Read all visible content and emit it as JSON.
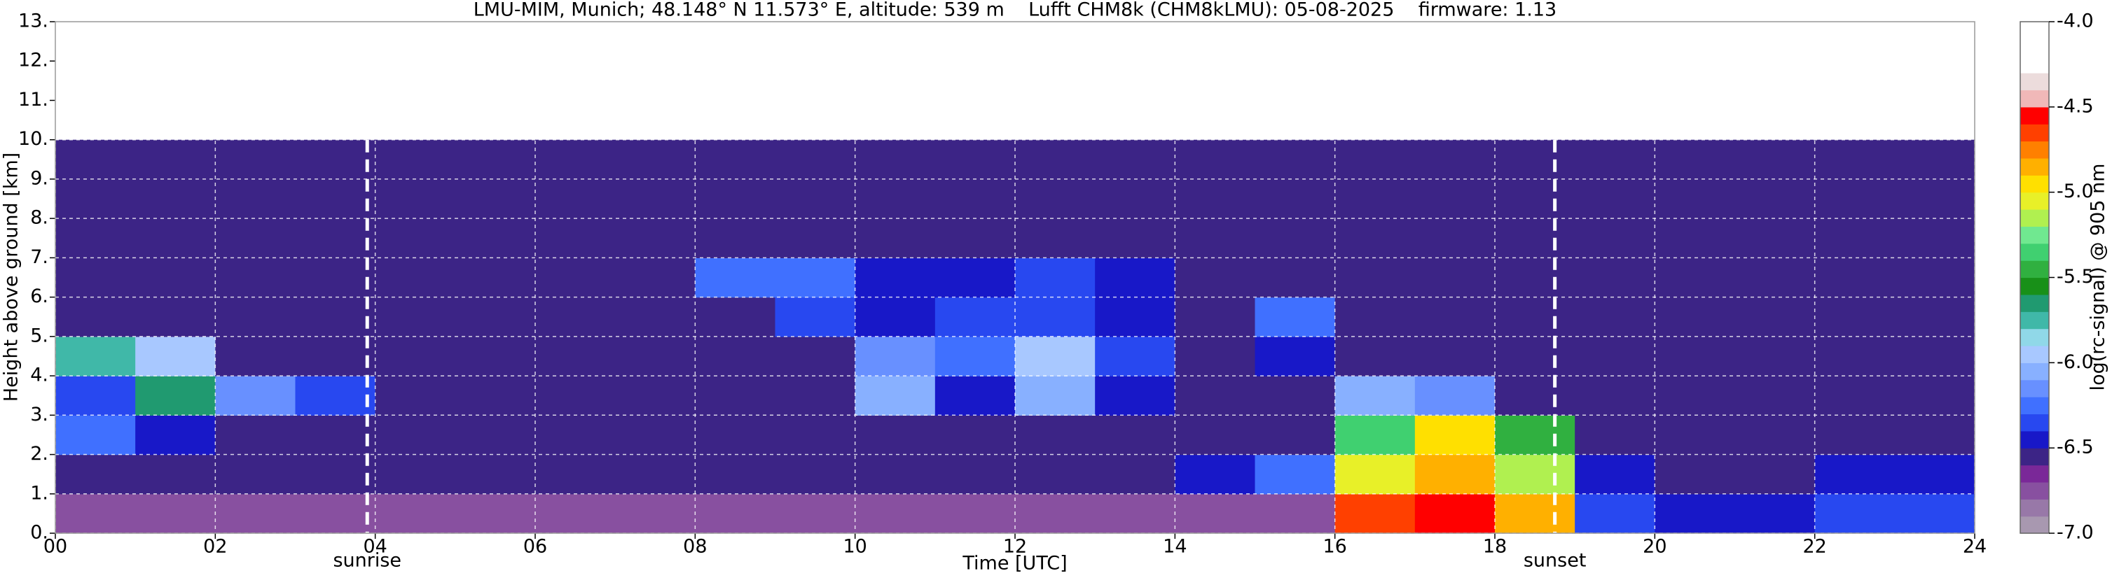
{
  "chart_data": {
    "type": "heatmap",
    "title": "LMU-MIM, Munich; 48.148° N 11.573° E, altitude: 539 m    Lufft CHM8k (CHM8kLMU): 05-08-2025    firmware: 1.13",
    "xlabel": "Time [UTC]",
    "ylabel": "Height above ground [km]",
    "colorbar_label": "log(rc-signal) @ 905 nm",
    "xlim": [
      0,
      24
    ],
    "ylim": [
      0,
      13
    ],
    "xticks": [
      {
        "value": 0,
        "label": "00"
      },
      {
        "value": 2,
        "label": "02"
      },
      {
        "value": 4,
        "label": "04"
      },
      {
        "value": 6,
        "label": "06"
      },
      {
        "value": 8,
        "label": "08"
      },
      {
        "value": 10,
        "label": "10"
      },
      {
        "value": 12,
        "label": "12"
      },
      {
        "value": 14,
        "label": "14"
      },
      {
        "value": 16,
        "label": "16"
      },
      {
        "value": 18,
        "label": "18"
      },
      {
        "value": 20,
        "label": "20"
      },
      {
        "value": 22,
        "label": "22"
      },
      {
        "value": 24,
        "label": "24"
      }
    ],
    "yticks": [
      {
        "value": 0,
        "label": "0."
      },
      {
        "value": 1,
        "label": "1."
      },
      {
        "value": 2,
        "label": "2."
      },
      {
        "value": 3,
        "label": "3."
      },
      {
        "value": 4,
        "label": "4."
      },
      {
        "value": 5,
        "label": "5."
      },
      {
        "value": 6,
        "label": "6."
      },
      {
        "value": 7,
        "label": "7."
      },
      {
        "value": 8,
        "label": "8."
      },
      {
        "value": 9,
        "label": "9."
      },
      {
        "value": 10,
        "label": "10."
      },
      {
        "value": 11,
        "label": "11."
      },
      {
        "value": 12,
        "label": "12."
      },
      {
        "value": 13,
        "label": "13."
      }
    ],
    "grid": true,
    "zlim": [
      -7,
      -4
    ],
    "cticks": [
      {
        "value": -4,
        "label": "-4.0"
      },
      {
        "value": -4.5,
        "label": "-4.5"
      },
      {
        "value": -5,
        "label": "-5.0"
      },
      {
        "value": -5.5,
        "label": "-5.5"
      },
      {
        "value": -6,
        "label": "-6.0"
      },
      {
        "value": -6.5,
        "label": "-6.5"
      },
      {
        "value": -7,
        "label": "-7.0"
      }
    ],
    "colorscale": [
      "#a898b0",
      "#9878a8",
      "#8850a0",
      "#7a2898",
      "#3c2486",
      "#1818c8",
      "#2848f0",
      "#4070ff",
      "#6890ff",
      "#88b0ff",
      "#a8c8ff",
      "#90d8e8",
      "#40b8a8",
      "#209a70",
      "#189018",
      "#30b040",
      "#40d070",
      "#70e890",
      "#b0f050",
      "#e8f028",
      "#ffe000",
      "#ffb000",
      "#ff8000",
      "#ff4000",
      "#ff0000",
      "#f0b8b8",
      "#ecdcdc",
      "#ffffff",
      "#ffffff",
      "#ffffff"
    ],
    "x": [
      0,
      1,
      2,
      3,
      4,
      5,
      6,
      7,
      8,
      9,
      10,
      11,
      12,
      13,
      14,
      15,
      16,
      17,
      18,
      19,
      20,
      21,
      22,
      23,
      24
    ],
    "y": [
      0,
      1,
      2,
      3,
      4,
      5,
      6,
      7,
      8,
      9,
      10
    ],
    "z": [
      [
        -6.75,
        -6.75,
        -6.75,
        -6.75,
        -6.75,
        -6.75,
        -6.75,
        -6.75,
        -6.72,
        -6.72,
        -6.72,
        -6.72,
        -6.72,
        -6.72,
        -6.72,
        -6.72,
        -4.65,
        -4.55,
        -4.85,
        -6.35,
        -6.45,
        -6.45,
        -6.35,
        -6.35
      ],
      [
        -6.55,
        -6.55,
        -6.55,
        -6.55,
        -6.55,
        -6.55,
        -6.55,
        -6.55,
        -6.55,
        -6.55,
        -6.55,
        -6.55,
        -6.55,
        -6.55,
        -6.45,
        -6.25,
        -5.05,
        -4.85,
        -5.15,
        -6.45,
        -6.55,
        -6.55,
        -6.45,
        -6.45
      ],
      [
        -6.25,
        -6.45,
        -6.55,
        -6.55,
        -6.55,
        -6.55,
        -6.55,
        -6.55,
        -6.55,
        -6.55,
        -6.55,
        -6.55,
        -6.55,
        -6.55,
        -6.55,
        -6.55,
        -5.35,
        -4.95,
        -5.45,
        -6.55,
        -6.55,
        -6.55,
        -6.55,
        -6.55
      ],
      [
        -6.35,
        -5.65,
        -6.15,
        -6.35,
        -6.55,
        -6.55,
        -6.55,
        -6.55,
        -6.55,
        -6.55,
        -6.05,
        -6.45,
        -6.05,
        -6.45,
        -6.55,
        -6.55,
        -6.05,
        -6.15,
        -6.55,
        -6.55,
        -6.55,
        -6.55,
        -6.55,
        -6.55
      ],
      [
        -5.75,
        -5.95,
        -6.55,
        -6.55,
        -6.55,
        -6.55,
        -6.55,
        -6.55,
        -6.55,
        -6.55,
        -6.15,
        -6.25,
        -5.95,
        -6.35,
        -6.55,
        -6.45,
        -6.55,
        -6.55,
        -6.55,
        -6.55,
        -6.55,
        -6.55,
        -6.55,
        -6.55
      ],
      [
        -6.55,
        -6.55,
        -6.55,
        -6.55,
        -6.55,
        -6.55,
        -6.55,
        -6.55,
        -6.55,
        -6.35,
        -6.45,
        -6.35,
        -6.35,
        -6.45,
        -6.55,
        -6.25,
        -6.55,
        -6.55,
        -6.55,
        -6.55,
        -6.55,
        -6.55,
        -6.55,
        -6.55
      ],
      [
        -6.55,
        -6.55,
        -6.55,
        -6.55,
        -6.55,
        -6.55,
        -6.55,
        -6.55,
        -6.25,
        -6.25,
        -6.45,
        -6.45,
        -6.35,
        -6.45,
        -6.55,
        -6.55,
        -6.55,
        -6.55,
        -6.55,
        -6.55,
        -6.55,
        -6.55,
        -6.55,
        -6.55
      ],
      [
        -6.55,
        -6.55,
        -6.55,
        -6.55,
        -6.55,
        -6.55,
        -6.55,
        -6.55,
        -6.55,
        -6.55,
        -6.55,
        -6.55,
        -6.55,
        -6.55,
        -6.55,
        -6.55,
        -6.55,
        -6.55,
        -6.55,
        -6.55,
        -6.55,
        -6.55,
        -6.55,
        -6.55
      ],
      [
        -6.55,
        -6.55,
        -6.55,
        -6.55,
        -6.55,
        -6.55,
        -6.55,
        -6.55,
        -6.55,
        -6.55,
        -6.55,
        -6.55,
        -6.55,
        -6.55,
        -6.55,
        -6.55,
        -6.55,
        -6.55,
        -6.55,
        -6.55,
        -6.55,
        -6.55,
        -6.55,
        -6.55
      ],
      [
        -6.55,
        -6.55,
        -6.55,
        -6.55,
        -6.55,
        -6.55,
        -6.55,
        -6.55,
        -6.55,
        -6.55,
        -6.55,
        -6.55,
        -6.55,
        -6.55,
        -6.55,
        -6.55,
        -6.55,
        -6.55,
        -6.55,
        -6.55,
        -6.55,
        -6.55,
        -6.55,
        -6.55
      ]
    ],
    "annotations": [
      {
        "text": "sunrise",
        "x": 3.9
      },
      {
        "text": "sunset",
        "x": 18.75
      }
    ]
  }
}
